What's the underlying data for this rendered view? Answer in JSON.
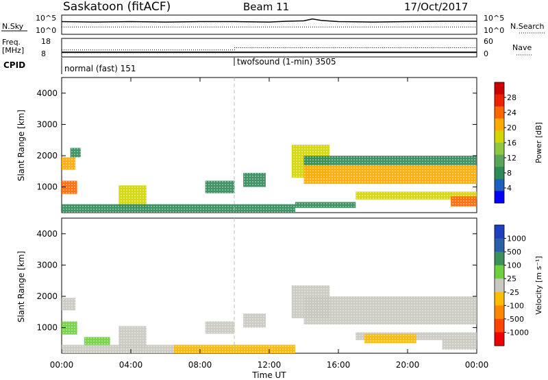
{
  "header": {
    "site": "Saskatoon (fitACF)",
    "beam": "Beam 11",
    "date": "17/Oct/2017"
  },
  "chart_data": [
    {
      "type": "line",
      "panel": "noise",
      "left_label": "N.Sky",
      "right_label": "N.Search",
      "left_ticks": [
        "10^5",
        "10^0"
      ],
      "right_ticks": [
        "10^5",
        "10^0"
      ],
      "series": [
        {
          "style": "solid",
          "x": [
            0,
            2,
            4,
            6,
            8,
            10,
            12,
            13,
            14,
            14.5,
            15,
            16,
            18,
            20,
            22,
            24
          ],
          "y": [
            3.3,
            3.2,
            3.3,
            3.2,
            3.3,
            3.3,
            3.2,
            3.4,
            3.5,
            4.0,
            3.6,
            3.3,
            3.2,
            3.3,
            3.4,
            3.4
          ]
        },
        {
          "style": "dotted",
          "x": [
            0,
            4,
            8,
            12,
            16,
            20,
            24
          ],
          "y": [
            1.9,
            1.9,
            1.9,
            1.9,
            1.9,
            1.9,
            1.9
          ]
        }
      ]
    },
    {
      "type": "line",
      "panel": "frequency",
      "left_label": "Freq.",
      "left_unit": "[MHz]",
      "right_label": "Nave",
      "left_ticks": [
        "18",
        "8"
      ],
      "right_ticks": [
        "60",
        "0"
      ],
      "series": [
        {
          "style": "solid",
          "x": [
            0,
            24
          ],
          "y": [
            10.5,
            10.5
          ]
        },
        {
          "style": "dotted",
          "x": [
            0,
            10,
            10,
            24
          ],
          "y": [
            11.8,
            11.8,
            13,
            13
          ]
        }
      ]
    },
    {
      "type": "text",
      "panel": "cpid",
      "label": "CPID",
      "segments": [
        {
          "start": 0,
          "end": 10,
          "name": "normal (fast) 151"
        },
        {
          "start": 10,
          "end": 24,
          "name": "twofsound (1-min) 3505"
        }
      ]
    },
    {
      "type": "heatmap",
      "panel": "power",
      "ylabel": "Slant Range [km]",
      "yticks": [
        1000,
        2000,
        3000,
        4000
      ],
      "ylim": [
        180,
        4500
      ],
      "xlim": [
        0,
        24
      ],
      "colorbar": {
        "label": "Power [dB]",
        "ticks": [
          "28",
          "24",
          "20",
          "16",
          "12",
          "8",
          "4"
        ],
        "colors": [
          "#cc0000",
          "#ee2200",
          "#ff6600",
          "#ffaa00",
          "#d4d400",
          "#8ec63f",
          "#5aa55a",
          "#2e8b57",
          "#1f5fbf",
          "#0000ff"
        ]
      },
      "regions": [
        {
          "x0": 0.0,
          "x1": 0.8,
          "y0": 1550,
          "y1": 1950,
          "v": 18
        },
        {
          "x0": 0.0,
          "x1": 0.9,
          "y0": 780,
          "y1": 1200,
          "v": 24
        },
        {
          "x0": 0.5,
          "x1": 1.1,
          "y0": 1950,
          "y1": 2250,
          "v": 8
        },
        {
          "x0": 3.3,
          "x1": 4.9,
          "y0": 350,
          "y1": 1050,
          "v": 16
        },
        {
          "x0": 0.0,
          "x1": 13.5,
          "y0": 180,
          "y1": 450,
          "v": 10
        },
        {
          "x0": 8.3,
          "x1": 10.0,
          "y0": 800,
          "y1": 1200,
          "v": 8
        },
        {
          "x0": 10.5,
          "x1": 11.8,
          "y0": 1000,
          "y1": 1450,
          "v": 8
        },
        {
          "x0": 13.3,
          "x1": 15.5,
          "y0": 1300,
          "y1": 2350,
          "v": 14
        },
        {
          "x0": 14.0,
          "x1": 24.0,
          "y0": 1100,
          "y1": 1700,
          "v": 18
        },
        {
          "x0": 14.0,
          "x1": 24.0,
          "y0": 1700,
          "y1": 2000,
          "v": 10
        },
        {
          "x0": 17.0,
          "x1": 24.0,
          "y0": 600,
          "y1": 850,
          "v": 16
        },
        {
          "x0": 22.5,
          "x1": 24.0,
          "y0": 380,
          "y1": 700,
          "v": 24
        },
        {
          "x0": 13.5,
          "x1": 17.0,
          "y0": 330,
          "y1": 520,
          "v": 10
        }
      ]
    },
    {
      "type": "heatmap",
      "panel": "velocity",
      "ylabel": "Slant Range [km]",
      "yticks": [
        1000,
        2000,
        3000,
        4000
      ],
      "ylim": [
        180,
        4500
      ],
      "xlim": [
        0,
        24
      ],
      "xticks": [
        "00:00",
        "04:00",
        "08:00",
        "12:00",
        "16:00",
        "20:00",
        "00:00"
      ],
      "xlabel": "Time UT",
      "colorbar": {
        "label": "Velocity [m s⁻¹]",
        "ticks": [
          "1000",
          "500",
          "100",
          "25",
          "-25",
          "-100",
          "-500",
          "-1000"
        ],
        "colors": [
          "#1f3fbf",
          "#2a5faa",
          "#3d8f5a",
          "#6fcf3f",
          "#c8c8c0",
          "#ffbb00",
          "#ff8800",
          "#ff4400",
          "#ee0000"
        ]
      },
      "regions": [
        {
          "x0": 0.0,
          "x1": 0.8,
          "y0": 1550,
          "y1": 1950,
          "v": "gray"
        },
        {
          "x0": 0.0,
          "x1": 0.9,
          "y0": 780,
          "y1": 1200,
          "v": "green"
        },
        {
          "x0": 1.3,
          "x1": 2.8,
          "y0": 400,
          "y1": 700,
          "v": "green"
        },
        {
          "x0": 3.3,
          "x1": 4.9,
          "y0": 350,
          "y1": 1050,
          "v": "gray"
        },
        {
          "x0": 0.0,
          "x1": 13.5,
          "y0": 180,
          "y1": 450,
          "v": "gray"
        },
        {
          "x0": 6.5,
          "x1": 13.5,
          "y0": 180,
          "y1": 450,
          "v": "orange"
        },
        {
          "x0": 8.3,
          "x1": 10.0,
          "y0": 800,
          "y1": 1200,
          "v": "gray"
        },
        {
          "x0": 10.5,
          "x1": 11.8,
          "y0": 1000,
          "y1": 1450,
          "v": "gray"
        },
        {
          "x0": 13.3,
          "x1": 15.5,
          "y0": 1300,
          "y1": 2350,
          "v": "gray"
        },
        {
          "x0": 14.0,
          "x1": 24.0,
          "y0": 1100,
          "y1": 2000,
          "v": "gray"
        },
        {
          "x0": 17.0,
          "x1": 24.0,
          "y0": 600,
          "y1": 850,
          "v": "gray"
        },
        {
          "x0": 17.5,
          "x1": 20.5,
          "y0": 500,
          "y1": 800,
          "v": "orange"
        },
        {
          "x0": 22.0,
          "x1": 24.0,
          "y0": 300,
          "y1": 650,
          "v": "gray"
        }
      ]
    }
  ]
}
